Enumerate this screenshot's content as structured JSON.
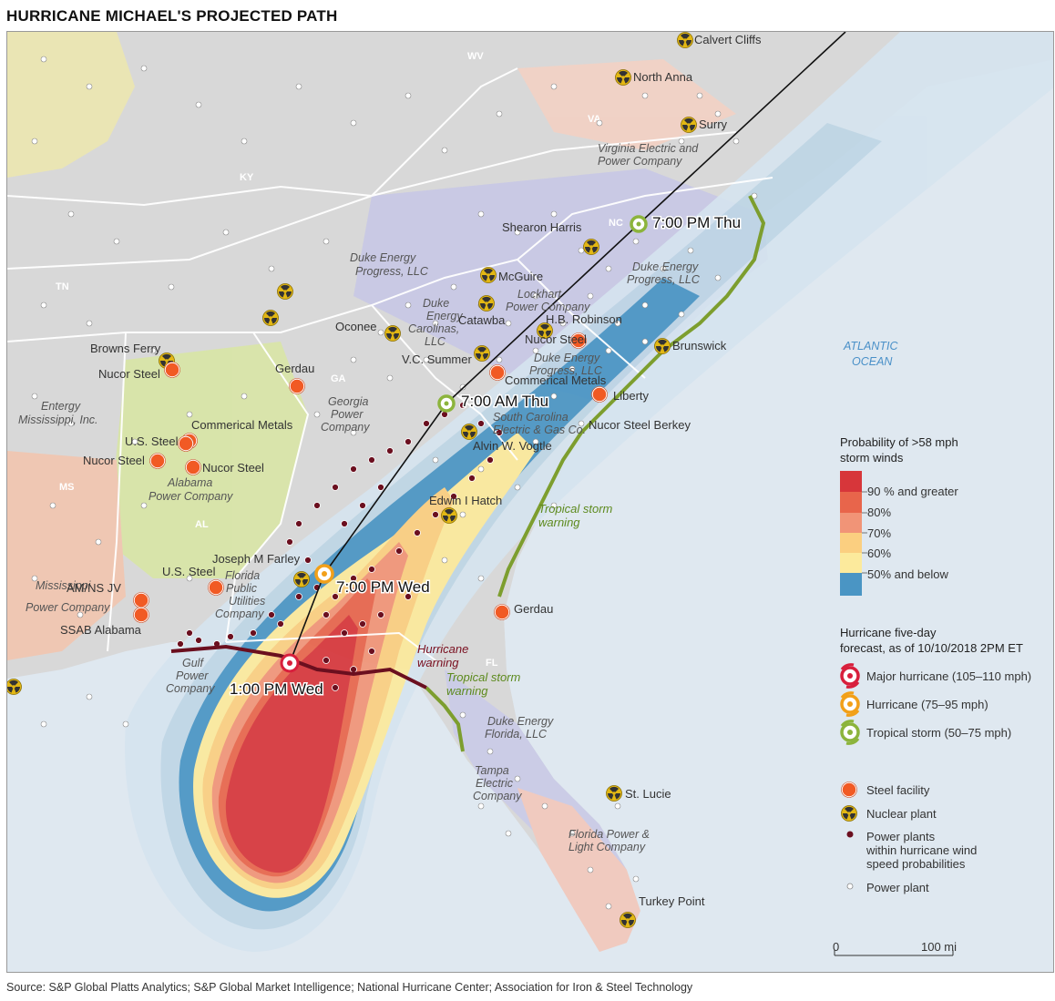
{
  "title": "HURRICANE MICHAEL'S PROJECTED PATH",
  "source": "Source: S&P Global Platts Analytics; S&P Global Market Intelligence; National Hurricane Center; Association for Iron & Steel Technology",
  "states": [
    "WV",
    "KY",
    "VA",
    "TN",
    "NC",
    "GA",
    "AL",
    "MS",
    "FL"
  ],
  "ocean_label": [
    "ATLANTIC",
    "OCEAN"
  ],
  "forecast_points": [
    {
      "label": "1:00 PM Wed",
      "category": "Major hurricane"
    },
    {
      "label": "7:00 PM Wed",
      "category": "Hurricane"
    },
    {
      "label": "7:00 AM Thu",
      "category": "Tropical storm"
    },
    {
      "label": "7:00 PM Thu",
      "category": "Tropical storm"
    }
  ],
  "warnings": {
    "tropical_1": [
      "Tropical storm",
      "warning"
    ],
    "tropical_2": [
      "Tropical storm",
      "warning"
    ],
    "hurricane": [
      "Hurricane",
      "warning"
    ]
  },
  "utilities": [
    [
      "Virginia Electric and",
      "Power Company"
    ],
    [
      "Duke Energy",
      "Progress, LLC"
    ],
    [
      "Duke Energy",
      "Progress, LLC"
    ],
    [
      "Duke",
      "Energy",
      "Carolinas,",
      "LLC"
    ],
    [
      "Lockhart",
      "Power Company"
    ],
    [
      "Duke Energy",
      "Progress, LLC"
    ],
    [
      "South Carolina",
      "Electric & Gas Co."
    ],
    [
      "Georgia",
      "Power",
      "Company"
    ],
    [
      "Alabama",
      "Power Company"
    ],
    [
      "Entergy",
      "Mississippi, Inc."
    ],
    [
      "Mississippi",
      "Power Company"
    ],
    [
      "Florida",
      "Public",
      "Utilities",
      "Company"
    ],
    [
      "Gulf",
      "Power",
      "Company"
    ],
    [
      "Duke Energy",
      "Florida, LLC"
    ],
    [
      "Tampa",
      "Electric",
      "Company"
    ],
    [
      "Florida Power &",
      "Light Company"
    ]
  ],
  "nuclear_plants": [
    "Calvert Cliffs",
    "North Anna",
    "Surry",
    "Shearon Harris",
    "Brunswick",
    "McGuire",
    "Catawba",
    "H.B. Robinson",
    "Oconee",
    "V.C. Summer",
    "Alvin W. Vogtle",
    "Edwin I Hatch",
    "Joseph M Farley",
    "Browns Ferry",
    "St. Lucie",
    "Turkey Point"
  ],
  "steel_facilities": [
    "Nucor Steel",
    "Commerical Metals",
    "Liberty",
    "Nucor Steel Berkey",
    "Gerdau",
    "Nucor Steel",
    "Commerical Metals",
    "U.S. Steel",
    "Nucor Steel",
    "Nucor Steel",
    "U.S. Steel",
    "AM/NS JV",
    "SSAB Alabama",
    "Gerdau"
  ],
  "legend": {
    "prob_title": [
      "Probability of >58 mph",
      "storm winds"
    ],
    "prob_levels": [
      {
        "label": "90 % and greater",
        "color": "#d7363a"
      },
      {
        "label": "80%",
        "color": "#e8654b"
      },
      {
        "label": "70%",
        "color": "#f19477"
      },
      {
        "label": "60%",
        "color": "#fbcf80"
      },
      {
        "label": "50% and below",
        "color": "#fcea9c"
      }
    ],
    "forecast_title": [
      "Hurricane five-day",
      "forecast, as of 10/10/2018 2PM ET"
    ],
    "categories": [
      "Major hurricane (105–110 mph)",
      "Hurricane (75–95 mph)",
      "Tropical storm (50–75 mph)"
    ],
    "category_colors": [
      "#d81f3c",
      "#f2a019",
      "#8cb43c"
    ],
    "symbols": [
      "Steel facility",
      "Nuclear plant",
      [
        "Power plants",
        "within hurricane wind",
        "speed probabilities"
      ],
      "Power plant"
    ]
  },
  "scale": {
    "zero": "0",
    "distance": "100 mi"
  },
  "colors": {
    "track": "#111111",
    "hurricane_warning": "#6b0f1f",
    "tropical_warning": "#7d9e2e",
    "steel": "#f15a24",
    "nuclear": "#e2b714",
    "plant_dot": "#6b0f1f"
  }
}
